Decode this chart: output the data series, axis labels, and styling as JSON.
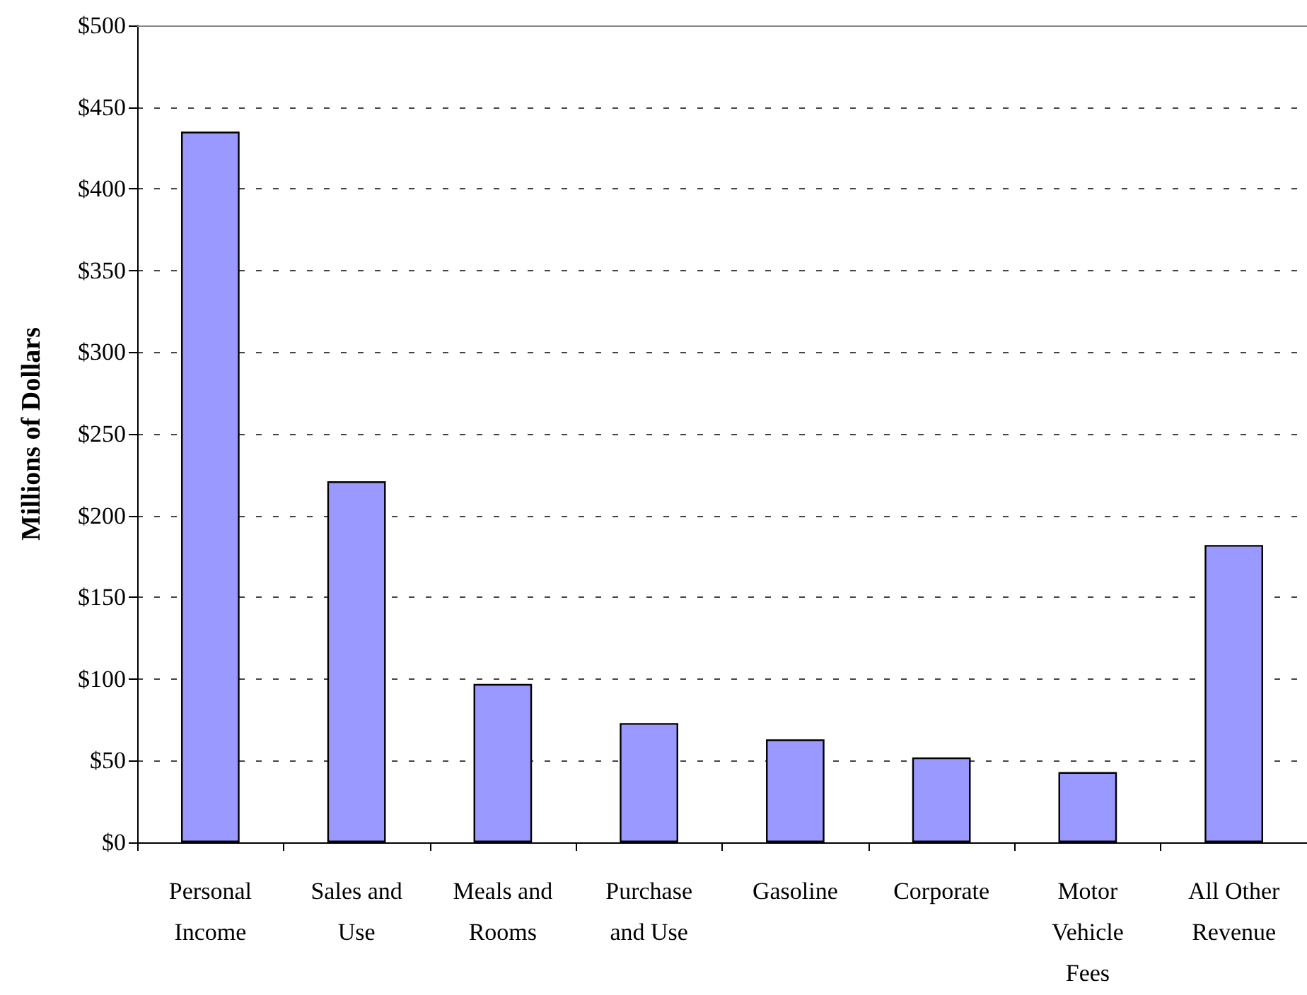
{
  "chart_data": {
    "type": "bar",
    "ylabel": "Millions of Dollars",
    "categories": [
      "Personal\nIncome",
      "Sales and\nUse",
      "Meals and\nRooms",
      "Purchase\nand Use",
      "Gasoline",
      "Corporate",
      "Motor\nVehicle\nFees",
      "All Other\nRevenue"
    ],
    "values": [
      435,
      221,
      97,
      73,
      63,
      52,
      43,
      182
    ],
    "color": "#9999ff",
    "ylim": [
      0,
      500
    ],
    "yticks": [
      {
        "value": 0,
        "label": "$0"
      },
      {
        "value": 50,
        "label": "$50"
      },
      {
        "value": 100,
        "label": "$100"
      },
      {
        "value": 150,
        "label": "$150"
      },
      {
        "value": 200,
        "label": "$200"
      },
      {
        "value": 250,
        "label": "$250"
      },
      {
        "value": 300,
        "label": "$300"
      },
      {
        "value": 350,
        "label": "$350"
      },
      {
        "value": 400,
        "label": "$400"
      },
      {
        "value": 450,
        "label": "$450"
      },
      {
        "value": 500,
        "label": "$500"
      }
    ],
    "grid": "y"
  }
}
